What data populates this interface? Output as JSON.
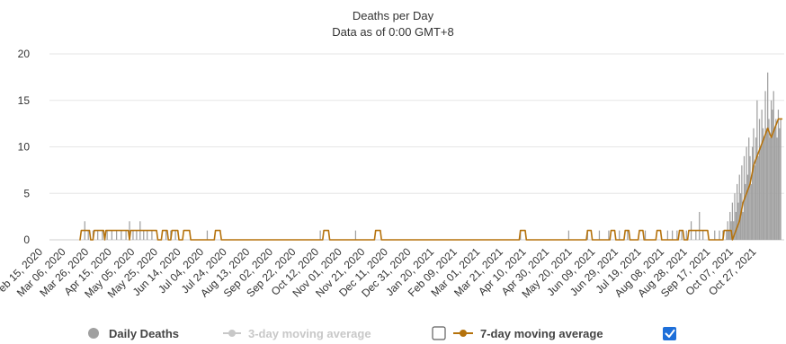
{
  "chart_data": {
    "type": "bar",
    "title": "Deaths per Day",
    "subtitle": "Data as of 0:00 GMT+8",
    "ylim": [
      0,
      20
    ],
    "y_ticks": [
      0,
      5,
      10,
      15,
      20
    ],
    "grid": true,
    "x_tick_labels": [
      "Feb 15, 2020",
      "Mar 06, 2020",
      "Mar 26, 2020",
      "Apr 15, 2020",
      "May 05, 2020",
      "May 25, 2020",
      "Jun 14, 2020",
      "Jul 04, 2020",
      "Jul 24, 2020",
      "Aug 13, 2020",
      "Sep 02, 2020",
      "Sep 22, 2020",
      "Oct 12, 2020",
      "Nov 01, 2020",
      "Nov 21, 2020",
      "Dec 11, 2020",
      "Dec 31, 2020",
      "Jan 20, 2021",
      "Feb 09, 2021",
      "Mar 01, 2021",
      "Mar 21, 2021",
      "Apr 10, 2021",
      "Apr 30, 2021",
      "May 20, 2021",
      "Jun 09, 2021",
      "Jun 29, 2021",
      "Jul 19, 2021",
      "Aug 08, 2021",
      "Aug 28, 2021",
      "Sep 17, 2021",
      "Oct 07, 2021",
      "Oct 27, 2021"
    ],
    "x_start": "2020-02-15",
    "x_end": "2021-10-31",
    "series": [
      {
        "name": "Daily Deaths",
        "kind": "bar",
        "color": "#a0a0a0",
        "points": [
          [
            "2020-03-16",
            2
          ],
          [
            "2020-03-19",
            1
          ],
          [
            "2020-03-23",
            1
          ],
          [
            "2020-03-27",
            1
          ],
          [
            "2020-03-31",
            1
          ],
          [
            "2020-04-04",
            1
          ],
          [
            "2020-04-08",
            1
          ],
          [
            "2020-04-12",
            1
          ],
          [
            "2020-04-16",
            1
          ],
          [
            "2020-04-20",
            1
          ],
          [
            "2020-04-23",
            2
          ],
          [
            "2020-04-26",
            1
          ],
          [
            "2020-04-29",
            1
          ],
          [
            "2020-05-02",
            2
          ],
          [
            "2020-05-05",
            1
          ],
          [
            "2020-05-08",
            1
          ],
          [
            "2020-05-12",
            1
          ],
          [
            "2020-05-24",
            1
          ],
          [
            "2020-05-28",
            1
          ],
          [
            "2020-06-01",
            1
          ],
          [
            "2020-06-28",
            1
          ],
          [
            "2020-10-02",
            1
          ],
          [
            "2020-11-01",
            1
          ],
          [
            "2021-03-21",
            1
          ],
          [
            "2021-05-01",
            1
          ],
          [
            "2021-05-17",
            1
          ],
          [
            "2021-05-27",
            1
          ],
          [
            "2021-06-04",
            1
          ],
          [
            "2021-06-13",
            1
          ],
          [
            "2021-06-20",
            1
          ],
          [
            "2021-07-05",
            1
          ],
          [
            "2021-07-24",
            1
          ],
          [
            "2021-07-28",
            1
          ],
          [
            "2021-08-01",
            1
          ],
          [
            "2021-08-05",
            1
          ],
          [
            "2021-08-09",
            1
          ],
          [
            "2021-08-13",
            2
          ],
          [
            "2021-08-17",
            1
          ],
          [
            "2021-08-20",
            3
          ],
          [
            "2021-08-23",
            1
          ],
          [
            "2021-09-02",
            1
          ],
          [
            "2021-09-06",
            1
          ],
          [
            "2021-09-09",
            1
          ],
          [
            "2021-09-12",
            1
          ],
          [
            "2021-09-13",
            2
          ],
          [
            "2021-09-14",
            1
          ],
          [
            "2021-09-15",
            3
          ],
          [
            "2021-09-16",
            2
          ],
          [
            "2021-09-17",
            4
          ],
          [
            "2021-09-18",
            2
          ],
          [
            "2021-09-19",
            5
          ],
          [
            "2021-09-20",
            3
          ],
          [
            "2021-09-21",
            6
          ],
          [
            "2021-09-22",
            4
          ],
          [
            "2021-09-23",
            7
          ],
          [
            "2021-09-24",
            5
          ],
          [
            "2021-09-25",
            8
          ],
          [
            "2021-09-26",
            3
          ],
          [
            "2021-09-27",
            9
          ],
          [
            "2021-09-28",
            6
          ],
          [
            "2021-09-29",
            10
          ],
          [
            "2021-09-30",
            7
          ],
          [
            "2021-10-01",
            11
          ],
          [
            "2021-10-02",
            9
          ],
          [
            "2021-10-03",
            6
          ],
          [
            "2021-10-04",
            10
          ],
          [
            "2021-10-05",
            12
          ],
          [
            "2021-10-06",
            8
          ],
          [
            "2021-10-07",
            11
          ],
          [
            "2021-10-08",
            15
          ],
          [
            "2021-10-09",
            9
          ],
          [
            "2021-10-10",
            13
          ],
          [
            "2021-10-11",
            10
          ],
          [
            "2021-10-12",
            14
          ],
          [
            "2021-10-13",
            12
          ],
          [
            "2021-10-14",
            11
          ],
          [
            "2021-10-15",
            16
          ],
          [
            "2021-10-16",
            12
          ],
          [
            "2021-10-17",
            18
          ],
          [
            "2021-10-18",
            13
          ],
          [
            "2021-10-19",
            11
          ],
          [
            "2021-10-20",
            15
          ],
          [
            "2021-10-21",
            14
          ],
          [
            "2021-10-22",
            16
          ],
          [
            "2021-10-23",
            12
          ],
          [
            "2021-10-24",
            13
          ],
          [
            "2021-10-25",
            11
          ],
          [
            "2021-10-26",
            14
          ],
          [
            "2021-10-27",
            12
          ],
          [
            "2021-10-28",
            13
          ]
        ]
      },
      {
        "name": "3-day moving average",
        "kind": "line",
        "color": "#c8c8c8",
        "visible": false,
        "checked": false
      },
      {
        "name": "7-day moving average",
        "kind": "line",
        "color": "#b5720c",
        "visible": true,
        "checked": true,
        "points": [
          [
            "2020-03-12",
            0
          ],
          [
            "2020-03-13",
            1
          ],
          [
            "2020-03-20",
            1
          ],
          [
            "2020-03-21",
            0
          ],
          [
            "2020-03-23",
            0
          ],
          [
            "2020-03-24",
            1
          ],
          [
            "2020-04-01",
            1
          ],
          [
            "2020-04-02",
            0
          ],
          [
            "2020-04-03",
            1
          ],
          [
            "2020-04-22",
            1
          ],
          [
            "2020-04-23",
            0
          ],
          [
            "2020-04-24",
            1
          ],
          [
            "2020-05-16",
            1
          ],
          [
            "2020-05-17",
            0
          ],
          [
            "2020-05-20",
            0
          ],
          [
            "2020-05-21",
            1
          ],
          [
            "2020-05-25",
            1
          ],
          [
            "2020-05-26",
            0
          ],
          [
            "2020-05-28",
            0
          ],
          [
            "2020-05-29",
            1
          ],
          [
            "2020-06-03",
            1
          ],
          [
            "2020-06-04",
            0
          ],
          [
            "2020-06-07",
            0
          ],
          [
            "2020-06-08",
            1
          ],
          [
            "2020-06-13",
            1
          ],
          [
            "2020-06-14",
            0
          ],
          [
            "2020-07-04",
            0
          ],
          [
            "2020-07-05",
            1
          ],
          [
            "2020-07-09",
            1
          ],
          [
            "2020-07-10",
            0
          ],
          [
            "2020-10-04",
            0
          ],
          [
            "2020-10-05",
            1
          ],
          [
            "2020-10-09",
            1
          ],
          [
            "2020-10-10",
            0
          ],
          [
            "2020-11-17",
            0
          ],
          [
            "2020-11-18",
            1
          ],
          [
            "2020-11-22",
            1
          ],
          [
            "2020-11-23",
            0
          ],
          [
            "2021-03-20",
            0
          ],
          [
            "2021-03-21",
            1
          ],
          [
            "2021-03-25",
            1
          ],
          [
            "2021-03-26",
            0
          ],
          [
            "2021-05-16",
            0
          ],
          [
            "2021-05-17",
            1
          ],
          [
            "2021-05-20",
            1
          ],
          [
            "2021-05-21",
            0
          ],
          [
            "2021-06-05",
            0
          ],
          [
            "2021-06-06",
            1
          ],
          [
            "2021-06-09",
            1
          ],
          [
            "2021-06-10",
            0
          ],
          [
            "2021-06-17",
            0
          ],
          [
            "2021-06-18",
            1
          ],
          [
            "2021-06-21",
            1
          ],
          [
            "2021-06-22",
            0
          ],
          [
            "2021-06-29",
            0
          ],
          [
            "2021-06-30",
            1
          ],
          [
            "2021-07-03",
            1
          ],
          [
            "2021-07-04",
            0
          ],
          [
            "2021-07-14",
            0
          ],
          [
            "2021-07-15",
            1
          ],
          [
            "2021-07-18",
            1
          ],
          [
            "2021-07-19",
            0
          ],
          [
            "2021-08-02",
            0
          ],
          [
            "2021-08-03",
            1
          ],
          [
            "2021-08-06",
            1
          ],
          [
            "2021-08-07",
            0
          ],
          [
            "2021-08-10",
            0
          ],
          [
            "2021-08-11",
            1
          ],
          [
            "2021-08-27",
            1
          ],
          [
            "2021-08-28",
            0
          ],
          [
            "2021-09-09",
            0
          ],
          [
            "2021-09-10",
            1
          ],
          [
            "2021-09-16",
            1
          ],
          [
            "2021-09-17",
            0
          ],
          [
            "2021-09-20",
            1
          ],
          [
            "2021-09-23",
            2
          ],
          [
            "2021-09-26",
            4
          ],
          [
            "2021-09-29",
            5
          ],
          [
            "2021-10-02",
            6
          ],
          [
            "2021-10-05",
            8
          ],
          [
            "2021-10-08",
            9
          ],
          [
            "2021-10-11",
            10
          ],
          [
            "2021-10-14",
            11
          ],
          [
            "2021-10-17",
            12
          ],
          [
            "2021-10-20",
            11
          ],
          [
            "2021-10-23",
            12
          ],
          [
            "2021-10-26",
            13
          ],
          [
            "2021-10-29",
            13
          ]
        ]
      }
    ]
  },
  "legend": {
    "daily": "Daily Deaths",
    "ma3": "3-day moving average",
    "ma7": "7-day moving average"
  }
}
